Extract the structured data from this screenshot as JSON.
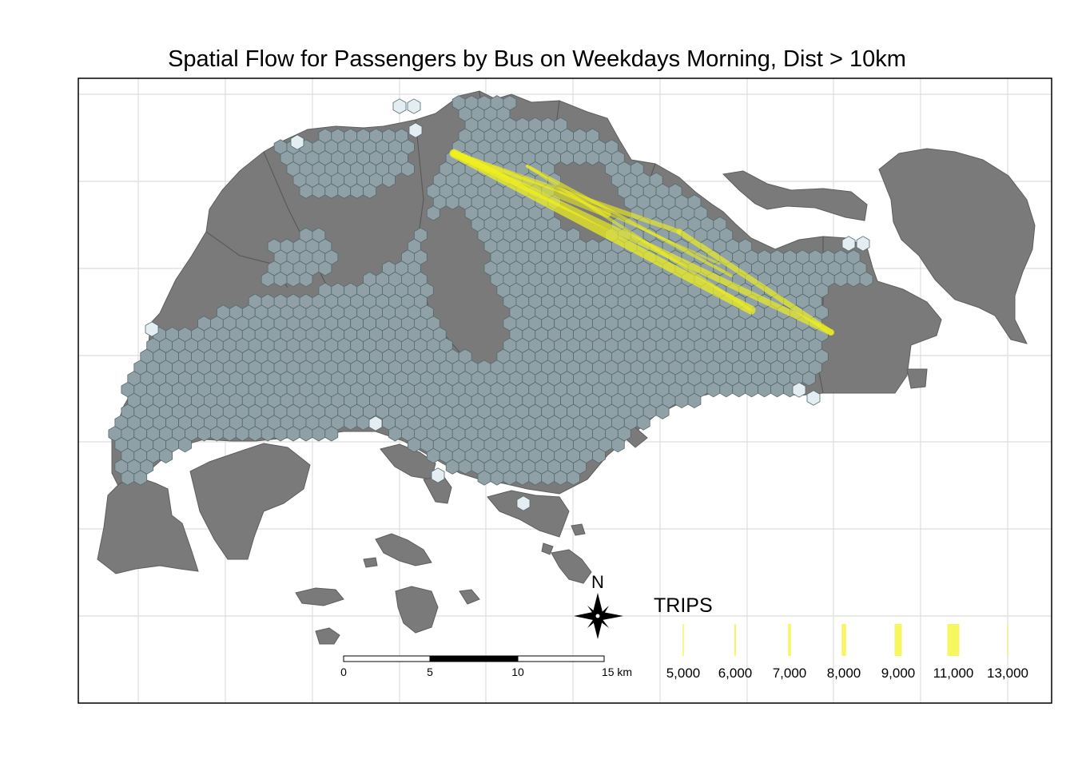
{
  "title": "Spatial Flow for Passengers by Bus on Weekdays Morning, Dist > 10km",
  "legend": {
    "title": "TRIPS",
    "entries": [
      {
        "label": "5,000",
        "value": 5000
      },
      {
        "label": "6,000",
        "value": 6000
      },
      {
        "label": "7,000",
        "value": 7000
      },
      {
        "label": "8,000",
        "value": 8000
      },
      {
        "label": "9,000",
        "value": 9000
      },
      {
        "label": "11,000",
        "value": 11000
      },
      {
        "label": "13,000",
        "value": 13000
      }
    ]
  },
  "north_arrow": {
    "label": "N"
  },
  "scale_bar": {
    "ticks": [
      "0",
      "5",
      "10",
      "15 km"
    ]
  },
  "colors": {
    "land": "#7a7a7a",
    "hexagon": "#8fa1a6",
    "hexagon_stroke": "#556a70",
    "flow": "#f2f21a",
    "grid": "#d9d9d9"
  }
}
